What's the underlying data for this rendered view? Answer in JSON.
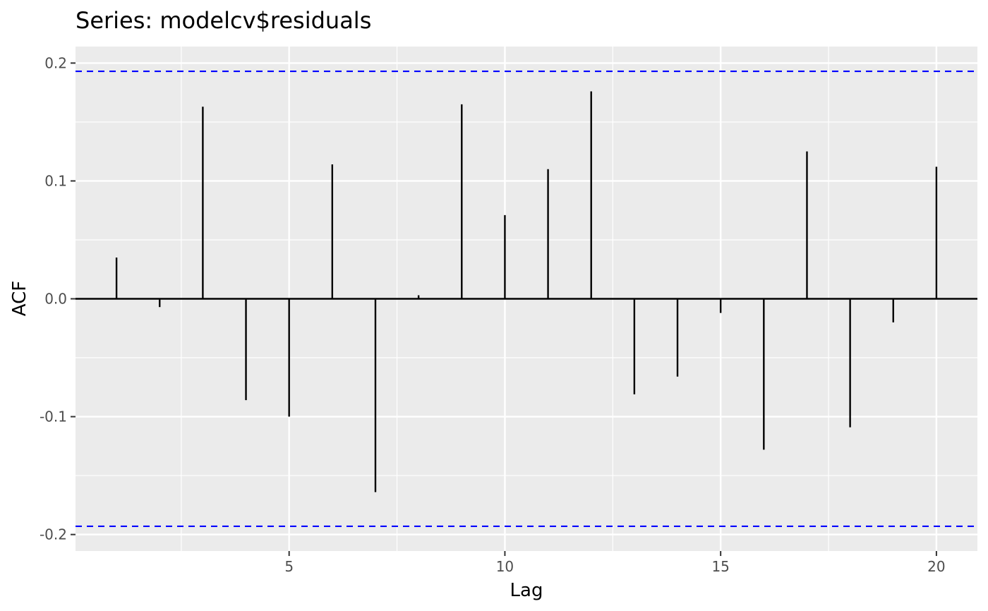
{
  "chart_data": {
    "type": "bar",
    "title": "Series: modelcv$residuals",
    "xlabel": "Lag",
    "ylabel": "ACF",
    "xlim": [
      0.05,
      20.95
    ],
    "ylim": [
      -0.214,
      0.214
    ],
    "x_ticks": [
      5,
      10,
      15,
      20
    ],
    "x_tick_labels": [
      "5",
      "10",
      "15",
      "20"
    ],
    "y_ticks": [
      -0.2,
      -0.1,
      0.0,
      0.1,
      0.2
    ],
    "y_tick_labels": [
      "-0.2",
      "-0.1",
      "0.0",
      "0.1",
      "0.2"
    ],
    "grid": true,
    "lags": [
      1,
      2,
      3,
      4,
      5,
      6,
      7,
      8,
      9,
      10,
      11,
      12,
      13,
      14,
      15,
      16,
      17,
      18,
      19,
      20
    ],
    "values": [
      0.035,
      -0.007,
      0.163,
      -0.086,
      -0.1,
      0.114,
      -0.164,
      0.003,
      0.165,
      0.071,
      0.11,
      0.176,
      -0.081,
      -0.066,
      -0.012,
      -0.128,
      0.125,
      -0.109,
      -0.02,
      0.112
    ],
    "confidence_bound": 0.193,
    "colors": {
      "panel_background": "#ebebeb",
      "grid": "#ffffff",
      "bars": "#000000",
      "confidence_lines": "#0000ff"
    }
  }
}
